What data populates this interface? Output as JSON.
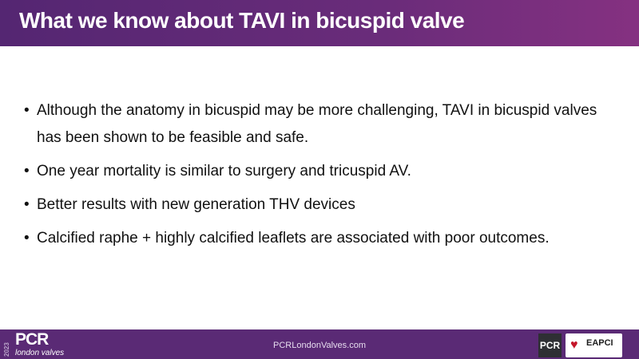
{
  "header": {
    "title": "What we know about TAVI in bicuspid valve"
  },
  "bullets": [
    "Although the anatomy in bicuspid may be more challenging, TAVI in bicuspid valves has been shown to be feasible and safe.",
    "One year mortality is similar to surgery and tricuspid AV.",
    "Better results with new generation THV devices",
    "Calcified raphe + highly calcified leaflets are associated with poor outcomes."
  ],
  "footer": {
    "year": "2023",
    "brand": "PCR",
    "brand_sub": "london valves",
    "url": "PCRLondonValves.com",
    "logo_pcr": "PCR",
    "logo_eapci": "EAPCI"
  },
  "colors": {
    "header_start": "#542672",
    "header_end": "#853181",
    "footer": "#5a2a75"
  }
}
